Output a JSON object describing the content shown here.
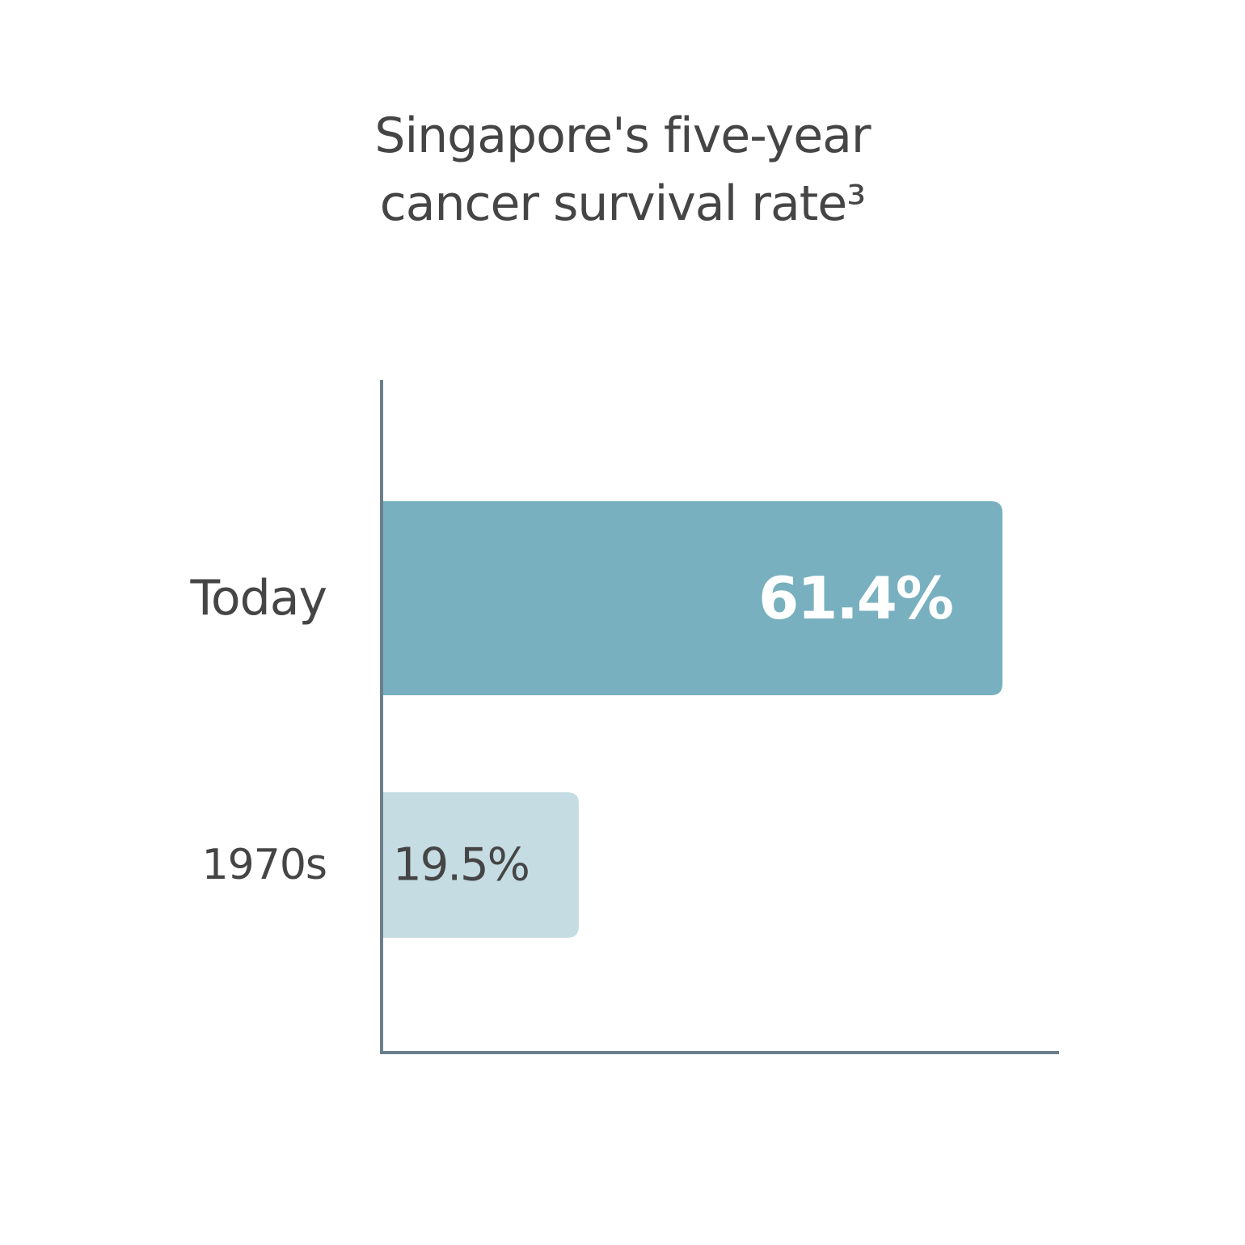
{
  "title": {
    "line1": "Singapore's five-year",
    "line2": "cancer survival rate³"
  },
  "chart_data": {
    "type": "bar",
    "orientation": "horizontal",
    "title": "Singapore's five-year cancer survival rate³",
    "categories": [
      "Today",
      "1970s"
    ],
    "values": [
      61.4,
      19.5
    ],
    "value_labels": [
      "61.4%",
      "19.5%"
    ],
    "xlim": [
      0,
      67
    ],
    "xlabel": "",
    "ylabel": "",
    "grid": false,
    "colors": {
      "bars": [
        "#78b0bf",
        "#c5dce3"
      ],
      "value_text": [
        "#ffffff",
        "#454545"
      ],
      "axis": "#6b7f8c",
      "text": "#454545"
    }
  }
}
